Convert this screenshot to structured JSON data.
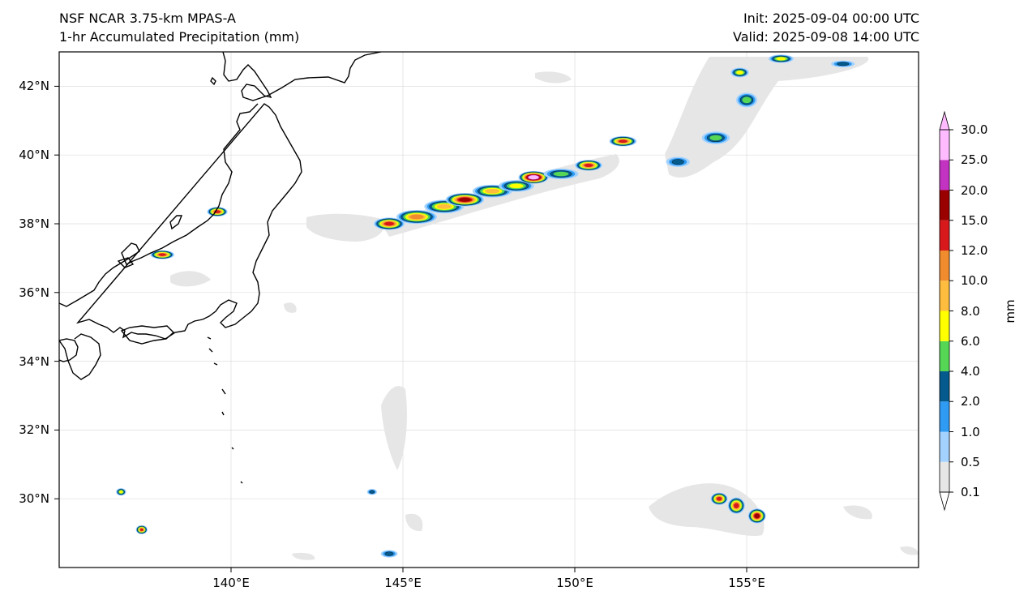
{
  "header": {
    "model": "NSF NCAR 3.75-km MPAS-A",
    "field": "1-hr Accumulated Precipitation (mm)",
    "init": "Init: 2025-09-04 00:00 UTC",
    "valid": "Valid: 2025-09-08 14:00 UTC"
  },
  "map": {
    "lon_range": [
      135,
      160
    ],
    "lat_range": [
      28,
      43
    ],
    "lat_ticks": [
      {
        "value": 42,
        "label": "42°N"
      },
      {
        "value": 40,
        "label": "40°N"
      },
      {
        "value": 38,
        "label": "38°N"
      },
      {
        "value": 36,
        "label": "36°N"
      },
      {
        "value": 34,
        "label": "34°N"
      },
      {
        "value": 32,
        "label": "32°N"
      },
      {
        "value": 30,
        "label": "30°N"
      }
    ],
    "lon_ticks": [
      {
        "value": 140,
        "label": "140°E"
      },
      {
        "value": 145,
        "label": "145°E"
      },
      {
        "value": 150,
        "label": "150°E"
      },
      {
        "value": 155,
        "label": "155°E"
      }
    ],
    "gridlines": true,
    "coastline_color": "#000000"
  },
  "colorbar": {
    "unit": "mm",
    "levels": [
      "0.1",
      "0.5",
      "1.0",
      "2.0",
      "4.0",
      "6.0",
      "8.0",
      "10.0",
      "12.0",
      "15.0",
      "20.0",
      "25.0",
      "30.0"
    ],
    "colors": [
      "#e6e6e6",
      "#a3d2ff",
      "#2f9bf3",
      "#045a8d",
      "#55d655",
      "#ffff00",
      "#ffbd3f",
      "#f08c2d",
      "#d7191c",
      "#9b0000",
      "#c233c2",
      "#ffbbff"
    ],
    "extend": "both"
  },
  "precip_cells": [
    {
      "lon": 144.6,
      "lat": 38.0,
      "rx": 0.35,
      "ry": 0.12,
      "level": 8
    },
    {
      "lon": 145.4,
      "lat": 38.2,
      "rx": 0.5,
      "ry": 0.15,
      "level": 7
    },
    {
      "lon": 146.2,
      "lat": 38.5,
      "rx": 0.5,
      "ry": 0.15,
      "level": 6
    },
    {
      "lon": 146.8,
      "lat": 38.7,
      "rx": 0.45,
      "ry": 0.13,
      "level": 9
    },
    {
      "lon": 147.6,
      "lat": 38.95,
      "rx": 0.5,
      "ry": 0.14,
      "level": 6
    },
    {
      "lon": 148.3,
      "lat": 39.1,
      "rx": 0.45,
      "ry": 0.13,
      "level": 5
    },
    {
      "lon": 148.8,
      "lat": 39.35,
      "rx": 0.3,
      "ry": 0.1,
      "level": 12
    },
    {
      "lon": 149.6,
      "lat": 39.45,
      "rx": 0.45,
      "ry": 0.12,
      "level": 4
    },
    {
      "lon": 150.4,
      "lat": 39.7,
      "rx": 0.3,
      "ry": 0.1,
      "level": 8
    },
    {
      "lon": 151.4,
      "lat": 40.4,
      "rx": 0.3,
      "ry": 0.09,
      "level": 8
    },
    {
      "lon": 154.1,
      "lat": 40.5,
      "rx": 0.35,
      "ry": 0.15,
      "level": 4
    },
    {
      "lon": 153.0,
      "lat": 39.8,
      "rx": 0.3,
      "ry": 0.12,
      "level": 3
    },
    {
      "lon": 155.0,
      "lat": 41.6,
      "rx": 0.25,
      "ry": 0.18,
      "level": 4
    },
    {
      "lon": 154.8,
      "lat": 42.4,
      "rx": 0.2,
      "ry": 0.1,
      "level": 5
    },
    {
      "lon": 156.0,
      "lat": 42.8,
      "rx": 0.3,
      "ry": 0.08,
      "level": 5
    },
    {
      "lon": 157.8,
      "lat": 42.65,
      "rx": 0.3,
      "ry": 0.07,
      "level": 3
    },
    {
      "lon": 154.2,
      "lat": 30.0,
      "rx": 0.15,
      "ry": 0.12,
      "level": 8
    },
    {
      "lon": 154.7,
      "lat": 29.8,
      "rx": 0.15,
      "ry": 0.18,
      "level": 8
    },
    {
      "lon": 155.3,
      "lat": 29.5,
      "rx": 0.15,
      "ry": 0.15,
      "level": 9
    },
    {
      "lon": 139.6,
      "lat": 38.35,
      "rx": 0.2,
      "ry": 0.08,
      "level": 8
    },
    {
      "lon": 138.0,
      "lat": 37.1,
      "rx": 0.25,
      "ry": 0.07,
      "level": 8
    },
    {
      "lon": 136.8,
      "lat": 30.2,
      "rx": 0.08,
      "ry": 0.07,
      "level": 5
    },
    {
      "lon": 137.4,
      "lat": 29.1,
      "rx": 0.07,
      "ry": 0.07,
      "level": 8
    },
    {
      "lon": 144.6,
      "lat": 28.4,
      "rx": 0.2,
      "ry": 0.08,
      "level": 3
    },
    {
      "lon": 144.1,
      "lat": 30.2,
      "rx": 0.1,
      "ry": 0.06,
      "level": 3
    }
  ]
}
